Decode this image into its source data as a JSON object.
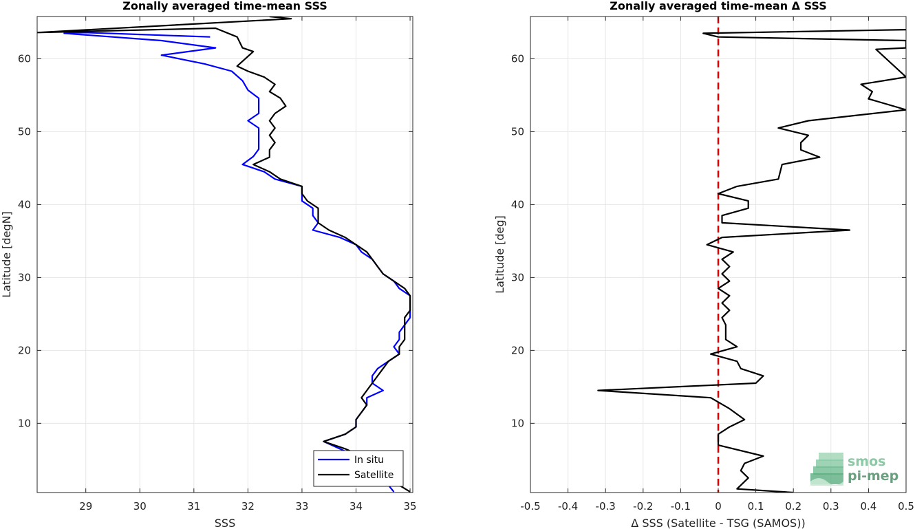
{
  "chart_data": [
    {
      "type": "line",
      "title": "Zonally averaged time-mean SSS",
      "xlabel": "SSS",
      "ylabel": "Latitude [degN]",
      "xlim": [
        28.1,
        35.05
      ],
      "ylim": [
        0.5,
        65.8
      ],
      "xticks": [
        29,
        30,
        31,
        32,
        33,
        34,
        35
      ],
      "yticks": [
        10,
        20,
        30,
        40,
        50,
        60
      ],
      "grid": true,
      "legend": "bottom-right",
      "series": [
        {
          "name": "In situ",
          "color": "#0000ff",
          "points": [
            [
              31.3,
              63.0
            ],
            [
              29.0,
              63.6
            ],
            [
              28.6,
              63.5
            ],
            [
              30.4,
              62.5
            ],
            [
              31.4,
              61.5
            ],
            [
              30.4,
              60.5
            ],
            [
              31.2,
              59.3
            ],
            [
              31.7,
              58.3
            ],
            [
              31.9,
              57.0
            ],
            [
              32.0,
              55.7
            ],
            [
              32.2,
              54.6
            ],
            [
              32.2,
              53.5
            ],
            [
              32.2,
              52.5
            ],
            [
              32.0,
              51.5
            ],
            [
              32.2,
              50.5
            ],
            [
              32.2,
              49.5
            ],
            [
              32.2,
              48.5
            ],
            [
              32.2,
              47.6
            ],
            [
              32.1,
              46.6
            ],
            [
              31.9,
              45.5
            ],
            [
              32.3,
              44.5
            ],
            [
              32.5,
              43.5
            ],
            [
              33.0,
              42.5
            ],
            [
              33.0,
              41.5
            ],
            [
              33.0,
              40.5
            ],
            [
              33.2,
              39.5
            ],
            [
              33.2,
              38.5
            ],
            [
              33.3,
              37.5
            ],
            [
              33.2,
              36.5
            ],
            [
              33.7,
              35.5
            ],
            [
              34.0,
              34.5
            ],
            [
              34.1,
              33.5
            ],
            [
              34.3,
              32.5
            ],
            [
              34.4,
              31.5
            ],
            [
              34.5,
              30.5
            ],
            [
              34.7,
              29.5
            ],
            [
              34.8,
              28.5
            ],
            [
              35.0,
              27.5
            ],
            [
              35.0,
              26.5
            ],
            [
              35.0,
              25.5
            ],
            [
              35.0,
              24.5
            ],
            [
              34.9,
              23.5
            ],
            [
              34.8,
              22.5
            ],
            [
              34.8,
              21.5
            ],
            [
              34.7,
              20.5
            ],
            [
              34.8,
              19.5
            ],
            [
              34.6,
              18.5
            ],
            [
              34.4,
              17.5
            ],
            [
              34.3,
              16.5
            ],
            [
              34.3,
              15.5
            ],
            [
              34.5,
              14.5
            ],
            [
              34.2,
              13.5
            ],
            [
              34.2,
              12.5
            ],
            [
              34.1,
              11.5
            ],
            [
              34.0,
              10.5
            ],
            [
              34.0,
              9.5
            ],
            [
              33.8,
              8.5
            ],
            [
              33.4,
              7.5
            ],
            [
              33.7,
              6.5
            ],
            [
              34.0,
              5.5
            ],
            [
              34.3,
              4.5
            ],
            [
              34.4,
              3.5
            ],
            [
              34.5,
              2.5
            ],
            [
              34.6,
              1.5
            ],
            [
              34.7,
              0.6
            ]
          ]
        },
        {
          "name": "Satellite",
          "color": "#000000",
          "points": [
            [
              32.4,
              65.8
            ],
            [
              32.8,
              65.5
            ],
            [
              28.1,
              63.6
            ],
            [
              31.4,
              64.2
            ],
            [
              31.8,
              63.0
            ],
            [
              31.9,
              61.5
            ],
            [
              32.1,
              61.0
            ],
            [
              31.8,
              59.0
            ],
            [
              32.0,
              58.3
            ],
            [
              32.3,
              57.5
            ],
            [
              32.5,
              56.5
            ],
            [
              32.4,
              55.5
            ],
            [
              32.6,
              54.6
            ],
            [
              32.7,
              53.5
            ],
            [
              32.5,
              52.5
            ],
            [
              32.4,
              51.5
            ],
            [
              32.5,
              50.5
            ],
            [
              32.4,
              49.5
            ],
            [
              32.5,
              48.5
            ],
            [
              32.4,
              47.5
            ],
            [
              32.4,
              46.5
            ],
            [
              32.1,
              45.5
            ],
            [
              32.4,
              44.5
            ],
            [
              32.6,
              43.5
            ],
            [
              33.0,
              42.5
            ],
            [
              33.0,
              41.5
            ],
            [
              33.1,
              40.5
            ],
            [
              33.3,
              39.5
            ],
            [
              33.3,
              38.5
            ],
            [
              33.3,
              37.5
            ],
            [
              33.5,
              36.5
            ],
            [
              33.8,
              35.5
            ],
            [
              34.0,
              34.5
            ],
            [
              34.2,
              33.5
            ],
            [
              34.3,
              32.5
            ],
            [
              34.4,
              31.5
            ],
            [
              34.5,
              30.5
            ],
            [
              34.7,
              29.5
            ],
            [
              34.9,
              28.5
            ],
            [
              35.0,
              27.5
            ],
            [
              35.0,
              26.5
            ],
            [
              35.0,
              25.5
            ],
            [
              34.9,
              24.5
            ],
            [
              34.9,
              23.5
            ],
            [
              34.9,
              22.5
            ],
            [
              34.9,
              21.5
            ],
            [
              34.8,
              20.5
            ],
            [
              34.8,
              19.5
            ],
            [
              34.6,
              18.5
            ],
            [
              34.5,
              17.5
            ],
            [
              34.4,
              16.5
            ],
            [
              34.3,
              15.5
            ],
            [
              34.2,
              14.5
            ],
            [
              34.1,
              13.5
            ],
            [
              34.2,
              12.5
            ],
            [
              34.1,
              11.5
            ],
            [
              34.0,
              10.5
            ],
            [
              34.0,
              9.5
            ],
            [
              33.8,
              8.5
            ],
            [
              33.4,
              7.5
            ],
            [
              33.8,
              6.5
            ],
            [
              34.1,
              5.5
            ],
            [
              34.3,
              4.5
            ],
            [
              34.5,
              3.5
            ],
            [
              34.6,
              2.5
            ],
            [
              34.8,
              1.5
            ],
            [
              35.0,
              0.6
            ]
          ]
        }
      ]
    },
    {
      "type": "line",
      "title": "Zonally averaged time-mean Δ SSS",
      "xlabel": "Δ SSS (Satellite - TSG (SAMOS))",
      "ylabel": "Latitude [deg]",
      "xlim": [
        -0.5,
        0.5
      ],
      "ylim": [
        0.5,
        65.8
      ],
      "xticks": [
        -0.5,
        -0.4,
        -0.3,
        -0.2,
        -0.1,
        0,
        0.1,
        0.2,
        0.3,
        0.4,
        0.5
      ],
      "yticks": [
        10,
        20,
        30,
        40,
        50,
        60
      ],
      "grid": true,
      "reference_line": {
        "x": 0,
        "color": "#e00000",
        "style": "dashed"
      },
      "series": [
        {
          "name": "",
          "color": "#000000",
          "points": [
            [
              0.2,
              0.5
            ],
            [
              0.05,
              1.0
            ],
            [
              0.08,
              2.5
            ],
            [
              0.06,
              3.5
            ],
            [
              0.07,
              4.5
            ],
            [
              0.12,
              5.5
            ],
            [
              0.0,
              7.0
            ],
            [
              0.0,
              8.5
            ],
            [
              0.03,
              9.5
            ],
            [
              0.07,
              10.5
            ],
            [
              0.03,
              12.0
            ],
            [
              -0.02,
              13.5
            ],
            [
              -0.32,
              14.5
            ],
            [
              0.1,
              15.5
            ],
            [
              0.12,
              16.5
            ],
            [
              0.06,
              17.5
            ],
            [
              0.05,
              18.5
            ],
            [
              -0.02,
              19.5
            ],
            [
              0.05,
              20.5
            ],
            [
              0.02,
              21.5
            ],
            [
              0.02,
              22.5
            ],
            [
              0.02,
              23.5
            ],
            [
              0.01,
              24.5
            ],
            [
              0.03,
              25.5
            ],
            [
              0.01,
              26.5
            ],
            [
              0.03,
              27.5
            ],
            [
              0.0,
              28.5
            ],
            [
              0.03,
              29.5
            ],
            [
              0.01,
              30.5
            ],
            [
              0.03,
              31.5
            ],
            [
              0.01,
              32.5
            ],
            [
              0.04,
              33.5
            ],
            [
              -0.03,
              34.5
            ],
            [
              0.01,
              35.5
            ],
            [
              0.35,
              36.5
            ],
            [
              0.01,
              37.5
            ],
            [
              0.01,
              38.5
            ],
            [
              0.08,
              39.5
            ],
            [
              0.08,
              40.5
            ],
            [
              0.0,
              41.5
            ],
            [
              0.05,
              42.5
            ],
            [
              0.16,
              43.5
            ],
            [
              0.17,
              45.5
            ],
            [
              0.27,
              46.5
            ],
            [
              0.22,
              47.5
            ],
            [
              0.22,
              48.5
            ],
            [
              0.24,
              49.5
            ],
            [
              0.16,
              50.5
            ],
            [
              0.24,
              51.5
            ],
            [
              0.5,
              53.0
            ],
            [
              0.4,
              54.5
            ],
            [
              0.41,
              55.5
            ],
            [
              0.38,
              56.5
            ],
            [
              0.5,
              57.5
            ],
            [
              0.42,
              61.3
            ],
            [
              0.5,
              61.5
            ],
            [
              0.5,
              62.5
            ],
            [
              0.0,
              63.0
            ],
            [
              -0.04,
              63.5
            ],
            [
              0.5,
              64.0
            ]
          ]
        }
      ]
    }
  ],
  "legend": {
    "items": [
      "In situ",
      "Satellite"
    ]
  },
  "logo": {
    "line1": "smos",
    "line2": "pi-mep"
  }
}
